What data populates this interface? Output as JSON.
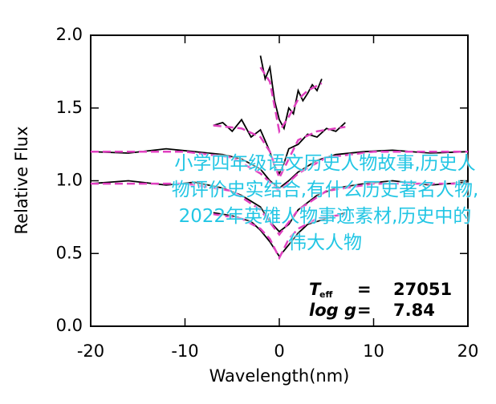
{
  "chart_data": {
    "type": "line",
    "xlabel": "Wavelength(nm)",
    "ylabel": "Relative Flux",
    "xlim": [
      -20,
      20
    ],
    "xticks": [
      -20,
      -10,
      0,
      10,
      20
    ],
    "ylim": [
      0,
      2
    ],
    "yticks": [
      {
        "value": 0,
        "label": "0.0"
      },
      0.5,
      {
        "value": 1,
        "label": "1.0"
      },
      1.5,
      {
        "value": 2,
        "label": "2.0"
      }
    ],
    "series": [
      {
        "color": "#000000",
        "style": "solid",
        "x": [
          -2,
          -1.5,
          -1,
          -0.5,
          0,
          0.5,
          1,
          1.5,
          2,
          2.5,
          3,
          3.5,
          4,
          4.5
        ],
        "values": [
          1.86,
          1.7,
          1.78,
          1.55,
          1.42,
          1.36,
          1.5,
          1.46,
          1.62,
          1.55,
          1.6,
          1.66,
          1.62,
          1.7
        ]
      },
      {
        "color": "#e040c0",
        "style": "dashed",
        "x": [
          -2,
          -1,
          0,
          1,
          2,
          3,
          4.5
        ],
        "values": [
          1.78,
          1.68,
          1.34,
          1.44,
          1.56,
          1.62,
          1.67
        ]
      },
      {
        "color": "#000000",
        "style": "solid",
        "x": [
          -7,
          -6,
          -5,
          -4,
          -3,
          -2,
          -1,
          -0.5,
          0,
          0.5,
          1,
          2,
          3,
          4,
          5,
          6,
          7
        ],
        "values": [
          1.38,
          1.4,
          1.34,
          1.42,
          1.3,
          1.35,
          1.2,
          1.1,
          1.05,
          1.12,
          1.22,
          1.25,
          1.32,
          1.3,
          1.36,
          1.34,
          1.4
        ]
      },
      {
        "color": "#e040c0",
        "style": "dashed",
        "x": [
          -7,
          -4,
          -2,
          -1,
          0,
          1,
          2,
          4,
          7
        ],
        "values": [
          1.38,
          1.36,
          1.3,
          1.2,
          1.02,
          1.15,
          1.28,
          1.34,
          1.37
        ]
      },
      {
        "color": "#000000",
        "style": "solid",
        "x": [
          -20,
          -16,
          -12,
          -9,
          -6,
          -4,
          -2,
          -1,
          0,
          1,
          2,
          4,
          6,
          9,
          12,
          16,
          20
        ],
        "values": [
          1.2,
          1.19,
          1.22,
          1.2,
          1.18,
          1.15,
          1.08,
          1.0,
          0.95,
          1.0,
          1.06,
          1.14,
          1.18,
          1.2,
          1.21,
          1.19,
          1.2
        ]
      },
      {
        "color": "#e040c0",
        "style": "dashed",
        "x": [
          -20,
          -10,
          -5,
          -2,
          0,
          2,
          5,
          10,
          20
        ],
        "values": [
          1.2,
          1.2,
          1.16,
          1.05,
          0.93,
          1.05,
          1.16,
          1.2,
          1.2
        ]
      },
      {
        "color": "#000000",
        "style": "solid",
        "x": [
          -20,
          -16,
          -12,
          -9,
          -6,
          -4,
          -2,
          -1,
          0,
          1,
          2,
          4,
          6,
          9,
          12,
          16,
          20
        ],
        "values": [
          0.98,
          1.0,
          0.97,
          0.99,
          0.95,
          0.9,
          0.82,
          0.72,
          0.65,
          0.7,
          0.8,
          0.9,
          0.95,
          0.98,
          1.0,
          0.97,
          0.99
        ]
      },
      {
        "color": "#e040c0",
        "style": "dashed",
        "x": [
          -20,
          -10,
          -5,
          -2,
          0,
          2,
          5,
          10,
          20
        ],
        "values": [
          0.98,
          0.98,
          0.93,
          0.8,
          0.63,
          0.8,
          0.93,
          0.98,
          0.98
        ]
      },
      {
        "color": "#000000",
        "style": "solid",
        "x": [
          -7,
          -5,
          -3,
          -2,
          -1,
          0,
          1,
          2,
          3,
          5,
          7
        ],
        "values": [
          0.78,
          0.76,
          0.72,
          0.66,
          0.58,
          0.48,
          0.56,
          0.64,
          0.7,
          0.74,
          0.78
        ]
      },
      {
        "color": "#e040c0",
        "style": "dashed",
        "x": [
          -7,
          -4,
          -2,
          -1,
          0,
          1,
          2,
          4,
          7
        ],
        "values": [
          0.77,
          0.74,
          0.67,
          0.6,
          0.47,
          0.6,
          0.67,
          0.74,
          0.77
        ]
      }
    ],
    "annotations": [
      {
        "label": "T",
        "subscript": "eff",
        "equals": "=",
        "value": "27051"
      },
      {
        "label": "log g",
        "equals": "=",
        "value": "7.84"
      }
    ]
  },
  "overlay_text": "小学四年级语文历史人物故事,历史人物评价史实结合,有什么历史著名人物,2022年英雄人物事迹素材,历史中的伟大人物"
}
